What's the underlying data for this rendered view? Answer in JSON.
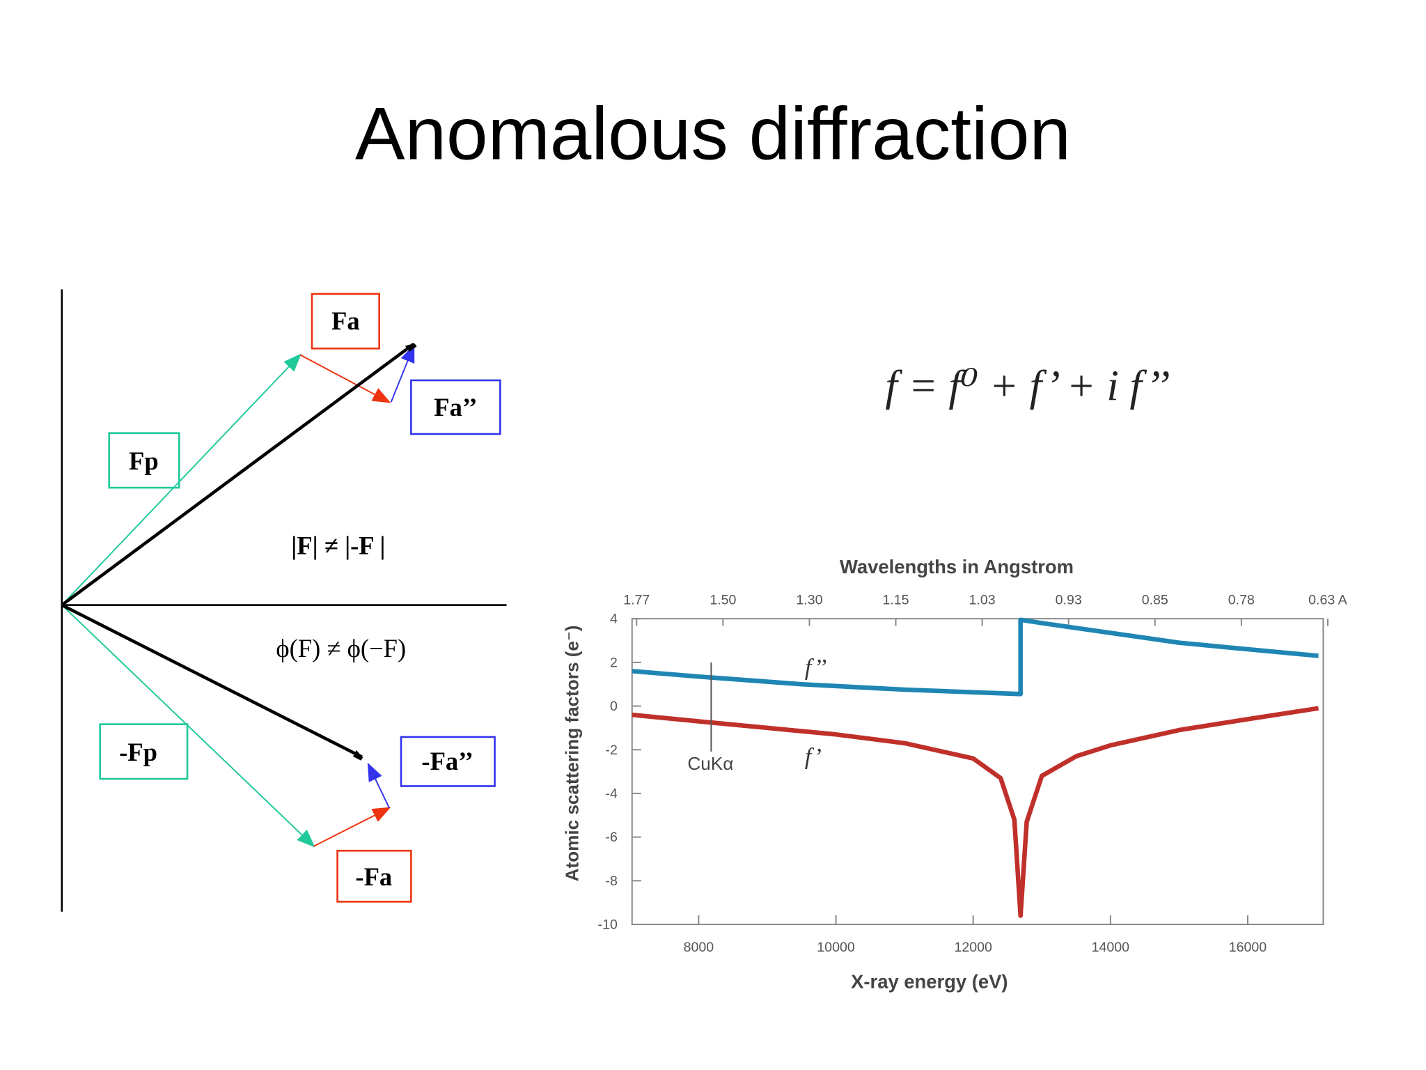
{
  "title": "Anomalous diffraction",
  "diagram": {
    "labels": {
      "fa": "Fa",
      "fa2": "Fa’’",
      "fp": "Fp",
      "neg_fp": "-Fp",
      "neg_fa2": "-Fa’’",
      "neg_fa": "-Fa"
    },
    "magnitude_note": "|F| ≠ |-F |",
    "phase_note": "ϕ(F) ≠ ϕ(−F)"
  },
  "formula": "f = f⁰ + f’ + i f’’",
  "chart_data": {
    "type": "line",
    "x2_title": "Wavelengths in Angstrom",
    "x2labels": [
      "1.77",
      "1.50",
      "1.30",
      "1.15",
      "1.03",
      "0.93",
      "0.85",
      "0.78",
      "0.63 A"
    ],
    "x_title": "X-ray energy (eV)",
    "y_title": "Atomic scattering factors (e⁻)",
    "xlim": [
      7030,
      17100
    ],
    "xticks": [
      8000,
      10000,
      12000,
      14000,
      16000
    ],
    "ylim": [
      -10,
      4
    ],
    "yticks": [
      4,
      2,
      0,
      -2,
      -4,
      -6,
      -8,
      -10
    ],
    "annotations": [
      "f’’",
      "f’",
      "CuKα"
    ],
    "series": [
      {
        "name": "f’’",
        "color": "#1f86b4",
        "x": [
          7030,
          8000,
          9500,
          11000,
          12690,
          12690,
          13000,
          14000,
          15000,
          16000,
          17030
        ],
        "values": [
          1.6,
          1.35,
          1.0,
          0.75,
          0.55,
          3.95,
          3.8,
          3.35,
          2.9,
          2.6,
          2.3
        ]
      },
      {
        "name": "f’",
        "color": "#c0302a",
        "x": [
          7030,
          8000,
          9000,
          10000,
          11000,
          12000,
          12400,
          12600,
          12690,
          12780,
          13000,
          13500,
          14000,
          15000,
          16000,
          17030
        ],
        "values": [
          -0.4,
          -0.7,
          -1.0,
          -1.3,
          -1.7,
          -2.4,
          -3.3,
          -5.2,
          -9.6,
          -5.3,
          -3.2,
          -2.3,
          -1.8,
          -1.1,
          -0.6,
          -0.1
        ]
      }
    ]
  }
}
